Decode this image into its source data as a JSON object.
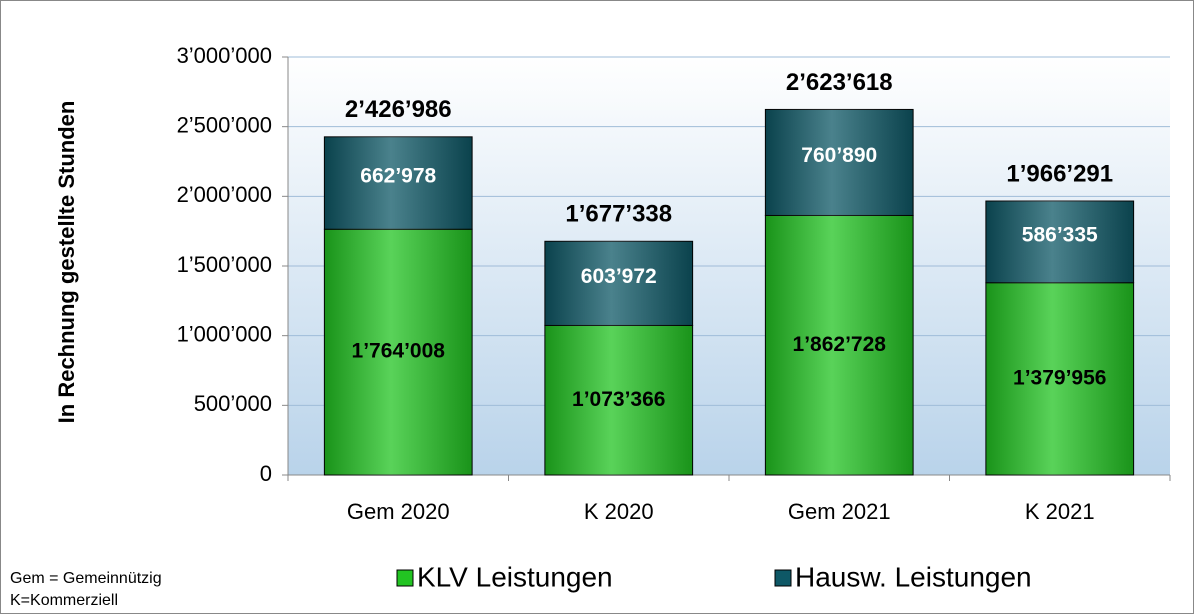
{
  "chart_data": {
    "type": "stacked_bar",
    "y_label": "In Rechnung gestellte Stunden",
    "categories": [
      "Gem 2020",
      "K 2020",
      "Gem 2021",
      "K 2021"
    ],
    "series": [
      {
        "name": "KLV Leistungen",
        "color": "#22c422",
        "values": [
          1764008,
          1073366,
          1862728,
          1379956
        ],
        "value_labels": [
          "1’764’008",
          "1’073’366",
          "1’862’728",
          "1’379’956"
        ]
      },
      {
        "name": "Hausw. Leistungen",
        "color": "#0e5866",
        "values": [
          662978,
          603972,
          760890,
          586335
        ],
        "value_labels": [
          "662’978",
          "603’972",
          "760’890",
          "586’335"
        ]
      }
    ],
    "total_labels": [
      "2’426’986",
      "1’677’338",
      "2’623’618",
      "1’966’291"
    ],
    "ylim": [
      0,
      3000000
    ],
    "yticks": [
      0,
      {
        "value": 500000,
        "label": "500’000"
      },
      {
        "value": 1000000,
        "label": "1’000’000"
      },
      {
        "value": 1500000,
        "label": "1’500’000"
      },
      {
        "value": 2000000,
        "label": "2’000’000"
      },
      {
        "value": 2500000,
        "label": "2’500’000"
      },
      {
        "value": 3000000,
        "label": "3’000’000"
      }
    ],
    "grid": true,
    "legend": "bottom",
    "footnotes": [
      "Gem = Gemeinnützig",
      "K=Kommerziell"
    ]
  }
}
